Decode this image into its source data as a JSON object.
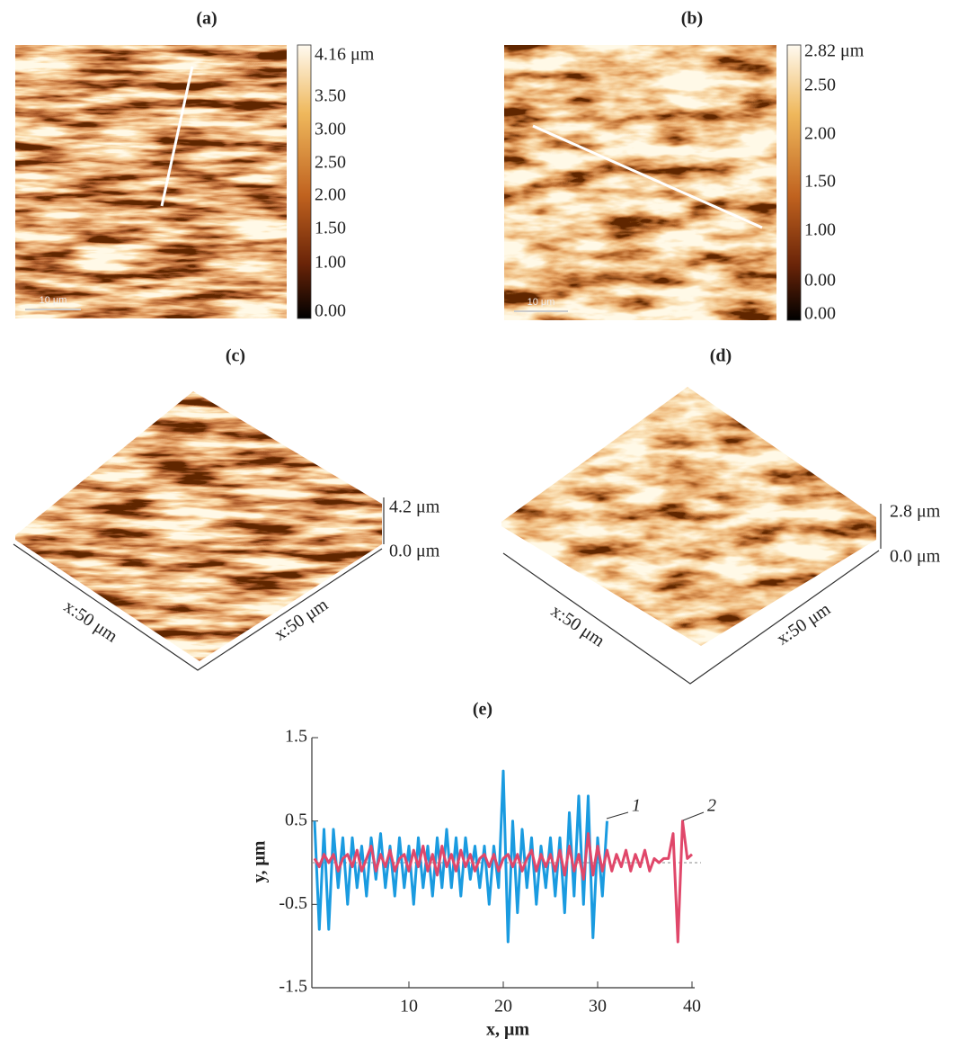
{
  "panels": {
    "a": {
      "label": "(a)",
      "scale_bar": "10 μm",
      "colorbar_ticks": [
        "4.16 μm",
        "3.50",
        "3.00",
        "2.50",
        "2.00",
        "1.50",
        "1.00",
        "0.00"
      ]
    },
    "b": {
      "label": "(b)",
      "scale_bar": "10 μm",
      "colorbar_ticks": [
        "2.82 μm",
        "2.50",
        "2.00",
        "1.50",
        "1.00",
        "0.00",
        "0.00"
      ]
    },
    "c": {
      "label": "(c)",
      "z_top": "4.2 μm",
      "z_bottom": "0.0 μm",
      "x_axis_left": "x:50 μm",
      "x_axis_right": "x:50 μm"
    },
    "d": {
      "label": "(d)",
      "z_top": "2.8 μm",
      "z_bottom": "0.0 μm",
      "x_axis_left": "x:50 μm",
      "x_axis_right": "x:50 μm"
    }
  },
  "chart_data": {
    "type": "line",
    "title": "(e)",
    "xlabel": "x, μm",
    "ylabel": "y, μm",
    "xlim": [
      0,
      40
    ],
    "ylim": [
      -1.5,
      1.5
    ],
    "xticks": [
      10,
      20,
      30,
      40
    ],
    "yticks": [
      1.5,
      0.5,
      -0.5,
      -1.5
    ],
    "x": [
      0,
      0.5,
      1,
      1.5,
      2,
      2.5,
      3,
      3.5,
      4,
      4.5,
      5,
      5.5,
      6,
      6.5,
      7,
      7.5,
      8,
      8.5,
      9,
      9.5,
      10,
      10.5,
      11,
      11.5,
      12,
      12.5,
      13,
      13.5,
      14,
      14.5,
      15,
      15.5,
      16,
      16.5,
      17,
      17.5,
      18,
      18.5,
      19,
      19.5,
      20,
      20.5,
      21,
      21.5,
      22,
      22.5,
      23,
      23.5,
      24,
      24.5,
      25,
      25.5,
      26,
      26.5,
      27,
      27.5,
      28,
      28.5,
      29,
      29.5,
      30,
      30.5,
      31,
      31.5,
      32,
      32.5,
      33,
      33.5,
      34,
      34.5,
      35,
      35.5,
      36,
      36.5,
      37,
      37.5,
      38,
      38.5,
      39,
      39.5,
      40
    ],
    "series": [
      {
        "name": "1",
        "color": "#1a9be0",
        "values": [
          0.5,
          -0.8,
          0.4,
          -0.8,
          0.4,
          -0.3,
          0.3,
          -0.5,
          0.3,
          -0.3,
          0.2,
          -0.4,
          0.3,
          -0.2,
          0.35,
          -0.3,
          0.2,
          -0.4,
          0.3,
          -0.3,
          0.2,
          -0.5,
          0.3,
          -0.3,
          0.2,
          -0.4,
          0.3,
          -0.3,
          0.4,
          -0.3,
          0.3,
          -0.4,
          0.3,
          -0.2,
          0.2,
          -0.3,
          0.2,
          -0.5,
          0.2,
          -0.3,
          1.1,
          -0.95,
          0.5,
          -0.6,
          0.4,
          -0.3,
          0.3,
          -0.5,
          0.2,
          -0.3,
          0.3,
          -0.4,
          0.3,
          -0.6,
          0.6,
          -0.4,
          0.8,
          -0.5,
          0.8,
          -0.9,
          0.3,
          -0.4,
          0.5,
          null,
          null,
          null,
          null,
          null,
          null,
          null,
          null,
          null,
          null,
          null,
          null,
          null,
          null,
          null,
          null,
          null,
          null
        ]
      },
      {
        "name": "2",
        "color": "#e0476a",
        "values": [
          0.05,
          -0.05,
          0.1,
          0.0,
          0.1,
          -0.1,
          0.05,
          0.1,
          -0.05,
          0.15,
          -0.1,
          0.05,
          0.2,
          -0.1,
          0.1,
          -0.05,
          0.15,
          -0.1,
          0.05,
          0.1,
          -0.1,
          0.15,
          -0.05,
          0.2,
          -0.1,
          0.1,
          -0.15,
          0.2,
          -0.05,
          0.1,
          -0.1,
          0.15,
          -0.05,
          0.1,
          -0.1,
          0.05,
          0.1,
          -0.05,
          0.1,
          -0.1,
          0.05,
          0.1,
          -0.05,
          0.1,
          -0.1,
          0.05,
          0.15,
          -0.1,
          0.1,
          -0.05,
          0.1,
          -0.1,
          0.15,
          -0.15,
          0.2,
          -0.1,
          0.1,
          -0.2,
          0.35,
          -0.15,
          0.2,
          -0.1,
          0.15,
          -0.1,
          0.1,
          -0.05,
          0.15,
          -0.1,
          0.1,
          -0.05,
          0.15,
          -0.1,
          0.05,
          0.0,
          0.05,
          0.05,
          0.35,
          -0.95,
          0.5,
          0.05,
          0.1
        ]
      }
    ]
  }
}
